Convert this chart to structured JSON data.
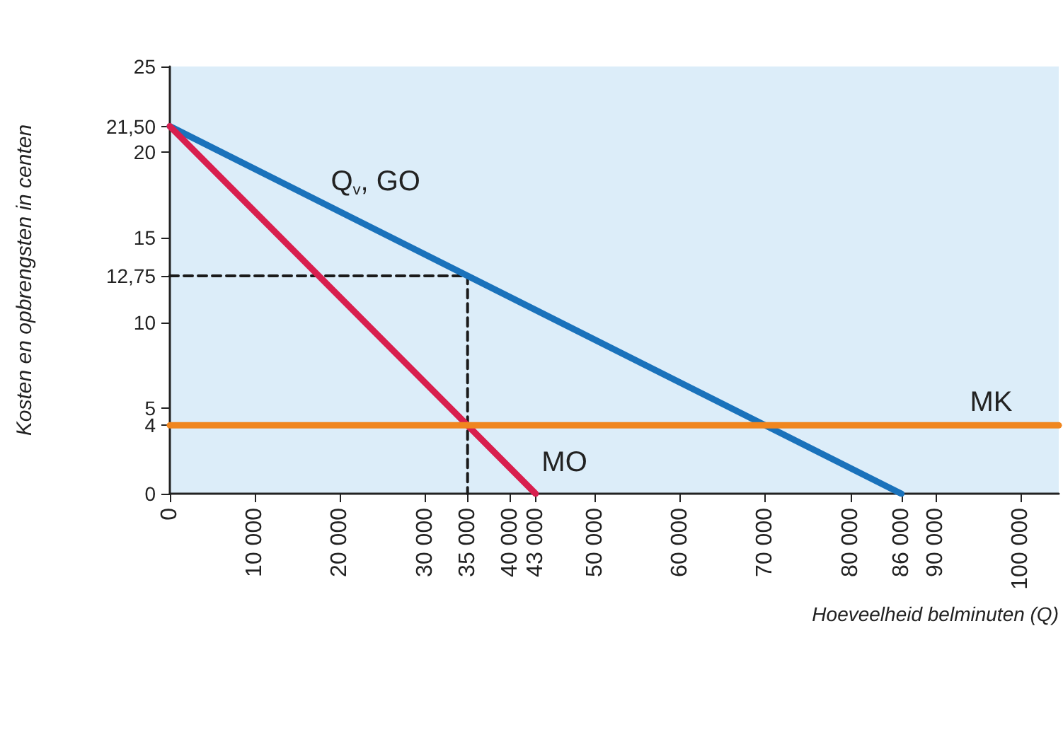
{
  "chart_data": {
    "type": "line",
    "xlabel": "Hoeveelheid belminuten (Q)",
    "ylabel": "Kosten en opbrengsten in centen",
    "xlim": [
      0,
      104500
    ],
    "ylim": [
      0,
      25
    ],
    "xticks": [
      0,
      {
        "value": 10000,
        "label": "10 000"
      },
      {
        "value": 20000,
        "label": "20 000"
      },
      {
        "value": 30000,
        "label": "30 000"
      },
      {
        "value": 35000,
        "label": "35 000"
      },
      {
        "value": 40000,
        "label": "40 000"
      },
      {
        "value": 43000,
        "label": "43 000"
      },
      {
        "value": 50000,
        "label": "50 000"
      },
      {
        "value": 60000,
        "label": "60 000"
      },
      {
        "value": 70000,
        "label": "70 000"
      },
      {
        "value": 80000,
        "label": "80 000"
      },
      {
        "value": 86000,
        "label": "86 000"
      },
      {
        "value": 90000,
        "label": "90 000"
      },
      {
        "value": 100000,
        "label": "100 000"
      }
    ],
    "yticks": [
      0,
      4,
      5,
      10,
      {
        "value": 12.75,
        "label": "12,75"
      },
      15,
      20,
      {
        "value": 21.5,
        "label": "21,50"
      },
      25
    ],
    "grid": false,
    "legend": false,
    "marker": "none",
    "line_style": "solid",
    "series": [
      {
        "name": "Q$_{v}$, GO",
        "color": "#1a72bb",
        "x": [
          0,
          86000
        ],
        "values": [
          21.5,
          0
        ]
      },
      {
        "name": "MO",
        "color": "#d81f4e",
        "x": [
          0,
          43000
        ],
        "values": [
          21.5,
          0
        ]
      },
      {
        "name": "MK",
        "color": "#f0861f",
        "x": [
          0,
          104500
        ],
        "values": [
          4,
          4
        ]
      },
      {
        "color": "#1a1a1a",
        "line_style": "dashed",
        "x": [
          0,
          35000,
          35000
        ],
        "values": [
          12.75,
          12.75,
          0
        ]
      }
    ]
  }
}
